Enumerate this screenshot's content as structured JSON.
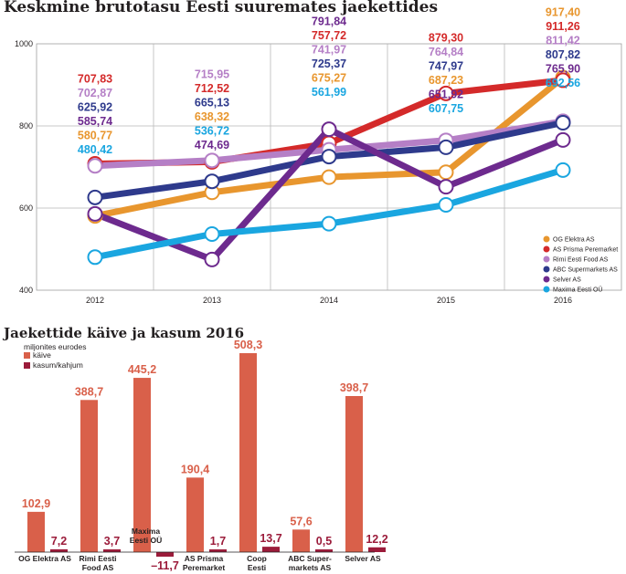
{
  "chart_data": [
    {
      "type": "line",
      "title": "Keskmine brutotasu Eesti suuremates jaekettides",
      "x": [
        "2012",
        "2013",
        "2014",
        "2015",
        "2016"
      ],
      "ylim": [
        400,
        1000
      ],
      "yticks": [
        400,
        600,
        800,
        1000
      ],
      "grid": true,
      "legend_position": "bottom-right",
      "series": [
        {
          "name": "OG Elektra AS",
          "color": "#e8962e",
          "values": [
            580.77,
            638.32,
            675.27,
            687.23,
            917.4
          ],
          "labels": [
            "580,77",
            "638,32",
            "675,27",
            "687,23",
            "917,40"
          ]
        },
        {
          "name": "AS Prisma Peremarket",
          "color": "#d42a2a",
          "values": [
            707.83,
            712.52,
            757.72,
            879.3,
            911.26
          ],
          "labels": [
            "707,83",
            "712,52",
            "757,72",
            "879,30",
            "911,26"
          ]
        },
        {
          "name": "Rimi Eesti Food AS",
          "color": "#b57fc6",
          "values": [
            702.87,
            715.95,
            741.97,
            764.84,
            811.42
          ],
          "labels": [
            "702,87",
            "715,95",
            "741,97",
            "764,84",
            "811,42"
          ]
        },
        {
          "name": "ABC Supermarkets AS",
          "color": "#2e3a8c",
          "values": [
            625.92,
            665.13,
            725.37,
            747.97,
            807.82
          ],
          "labels": [
            "625,92",
            "665,13",
            "725,37",
            "747,97",
            "807,82"
          ]
        },
        {
          "name": "Selver AS",
          "color": "#6d2a8e",
          "values": [
            585.74,
            474.69,
            791.84,
            651.92,
            765.9
          ],
          "labels": [
            "585,74",
            "474,69",
            "791,84",
            "651,92",
            "765,90"
          ]
        },
        {
          "name": "Maxima Eesti OÜ",
          "color": "#1aa6e0",
          "values": [
            480.42,
            536.72,
            561.99,
            607.75,
            692.56
          ],
          "labels": [
            "480,42",
            "536,72",
            "561,99",
            "607,75",
            "692,56"
          ]
        }
      ]
    },
    {
      "type": "bar",
      "title": "Jaekettide käive ja kasum 2016",
      "subtitle": "miljonites eurodes",
      "categories": [
        [
          "OG Elektra AS"
        ],
        [
          "Rimi Eesti",
          "Food AS"
        ],
        [
          "Maxima",
          "Eesti OÜ"
        ],
        [
          "AS Prisma",
          "Peremarket"
        ],
        [
          "Coop",
          "Eesti"
        ],
        [
          "ABC Super-",
          "markets AS"
        ],
        [
          "Selver AS"
        ]
      ],
      "series": [
        {
          "name": "käive",
          "color": "#d9604a",
          "values": [
            102.9,
            388.7,
            445.2,
            190.4,
            508.3,
            57.6,
            398.7
          ],
          "labels": [
            "102,9",
            "388,7",
            "445,2",
            "190,4",
            "508,3",
            "57,6",
            "398,7"
          ]
        },
        {
          "name": "kasum/kahjum",
          "color": "#9b1b3a",
          "values": [
            7.2,
            3.7,
            -11.7,
            1.7,
            13.7,
            0.5,
            12.2
          ],
          "labels": [
            "7,2",
            "3,7",
            "–11,7",
            "1,7",
            "13,7",
            "0,5",
            "12,2"
          ]
        }
      ]
    }
  ]
}
